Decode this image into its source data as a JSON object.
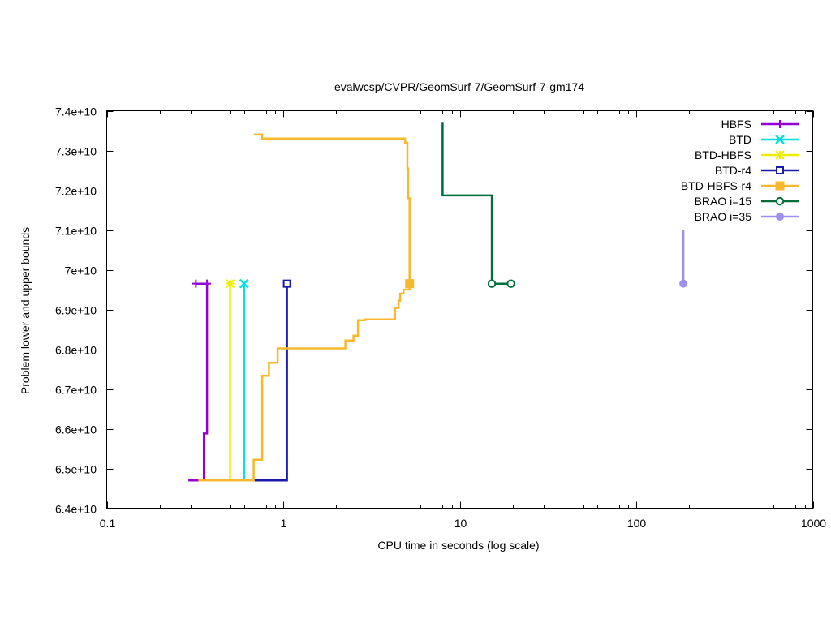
{
  "chart_data": {
    "type": "line",
    "title": "evalwcsp/CVPR/GeomSurf-7/GeomSurf-7-gm174",
    "xlabel": "CPU time in seconds (log scale)",
    "ylabel": "Problem lower and upper bounds",
    "x_scale": "log",
    "xlim": [
      0.1,
      1000
    ],
    "ylim": [
      64000000000,
      74000000000
    ],
    "x_ticks": [
      {
        "value": 0.1,
        "label": "0.1"
      },
      {
        "value": 1,
        "label": "1"
      },
      {
        "value": 10,
        "label": "10"
      },
      {
        "value": 100,
        "label": "100"
      },
      {
        "value": 1000,
        "label": "1000"
      }
    ],
    "y_ticks": [
      {
        "value": 64000000000,
        "label": "6.4e+10"
      },
      {
        "value": 65000000000,
        "label": "6.5e+10"
      },
      {
        "value": 66000000000,
        "label": "6.6e+10"
      },
      {
        "value": 67000000000,
        "label": "6.7e+10"
      },
      {
        "value": 68000000000,
        "label": "6.8e+10"
      },
      {
        "value": 69000000000,
        "label": "6.9e+10"
      },
      {
        "value": 70000000000,
        "label": "7e+10"
      },
      {
        "value": 71000000000,
        "label": "7.1e+10"
      },
      {
        "value": 72000000000,
        "label": "7.2e+10"
      },
      {
        "value": 73000000000,
        "label": "7.3e+10"
      },
      {
        "value": 74000000000,
        "label": "7.4e+10"
      }
    ],
    "grid": false,
    "legend_position": "top-right",
    "series": [
      {
        "name": "HBFS",
        "color": "#9400d3",
        "marker": "plus",
        "lines": [
          [
            [
              0.29,
              64700000000
            ],
            [
              0.355,
              64700000000
            ],
            [
              0.355,
              65880000000
            ],
            [
              0.37,
              65880000000
            ],
            [
              0.37,
              69650000000
            ]
          ],
          [
            [
              0.32,
              69650000000
            ],
            [
              0.38,
              69650000000
            ]
          ]
        ],
        "points": [
          [
            0.32,
            69650000000
          ],
          [
            0.37,
            69650000000
          ]
        ]
      },
      {
        "name": "BTD",
        "color": "#00e0e0",
        "marker": "cross",
        "lines": [
          [
            [
              0.6,
              64700000000
            ],
            [
              0.6,
              69650000000
            ]
          ]
        ],
        "points": [
          [
            0.6,
            69650000000
          ]
        ]
      },
      {
        "name": "BTD-HBFS",
        "color": "#eeee00",
        "marker": "star",
        "lines": [
          [
            [
              0.5,
              64700000000
            ],
            [
              0.5,
              69650000000
            ]
          ]
        ],
        "points": [
          [
            0.5,
            69650000000
          ]
        ]
      },
      {
        "name": "BTD-r4",
        "color": "#1a1aaa",
        "marker": "square-open",
        "lines": [
          [
            [
              0.6,
              64700000000
            ],
            [
              1.05,
              64700000000
            ],
            [
              1.05,
              69650000000
            ]
          ]
        ],
        "points": [
          [
            1.05,
            69650000000
          ]
        ]
      },
      {
        "name": "BTD-HBFS-r4",
        "color": "#f5b82e",
        "marker": "square-filled",
        "lines": [
          [
            [
              0.33,
              64700000000
            ],
            [
              0.68,
              64700000000
            ],
            [
              0.68,
              65220000000
            ],
            [
              0.76,
              65220000000
            ],
            [
              0.76,
              67330000000
            ],
            [
              0.83,
              67330000000
            ],
            [
              0.83,
              67660000000
            ],
            [
              0.93,
              67660000000
            ],
            [
              0.93,
              68020000000
            ],
            [
              2.25,
              68020000000
            ],
            [
              2.25,
              68220000000
            ],
            [
              2.5,
              68220000000
            ],
            [
              2.5,
              68340000000
            ],
            [
              2.65,
              68340000000
            ],
            [
              2.65,
              68730000000
            ],
            [
              2.9,
              68730000000
            ],
            [
              2.9,
              68750000000
            ],
            [
              4.3,
              68750000000
            ],
            [
              4.3,
              69040000000
            ],
            [
              4.5,
              69040000000
            ],
            [
              4.5,
              69220000000
            ],
            [
              4.6,
              69220000000
            ],
            [
              4.6,
              69400000000
            ],
            [
              4.8,
              69400000000
            ],
            [
              4.8,
              69500000000
            ],
            [
              5.2,
              69500000000
            ],
            [
              5.2,
              69650000000
            ]
          ],
          [
            [
              0.68,
              73400000000
            ],
            [
              0.76,
              73400000000
            ],
            [
              0.76,
              73300000000
            ],
            [
              4.9,
              73300000000
            ],
            [
              4.9,
              73200000000
            ],
            [
              5.05,
              73200000000
            ],
            [
              5.05,
              72550000000
            ],
            [
              5.1,
              72550000000
            ],
            [
              5.1,
              71800000000
            ],
            [
              5.2,
              71800000000
            ],
            [
              5.2,
              69650000000
            ]
          ]
        ],
        "points": [
          [
            5.2,
            69650000000
          ]
        ]
      },
      {
        "name": "BRAO i=15",
        "color": "#006e3a",
        "marker": "circle-open",
        "lines": [
          [
            [
              8,
              73700000000
            ],
            [
              8,
              71870000000
            ],
            [
              15.2,
              71870000000
            ],
            [
              15.2,
              69650000000
            ],
            [
              19.5,
              69650000000
            ]
          ]
        ],
        "points": [
          [
            15.2,
            69650000000
          ],
          [
            19.5,
            69650000000
          ]
        ]
      },
      {
        "name": "BRAO i=35",
        "color": "#9f8ff0",
        "marker": "circle-filled",
        "lines": [
          [
            [
              185,
              71000000000
            ],
            [
              185,
              69650000000
            ]
          ]
        ],
        "points": [
          [
            185,
            69650000000
          ]
        ]
      }
    ]
  }
}
